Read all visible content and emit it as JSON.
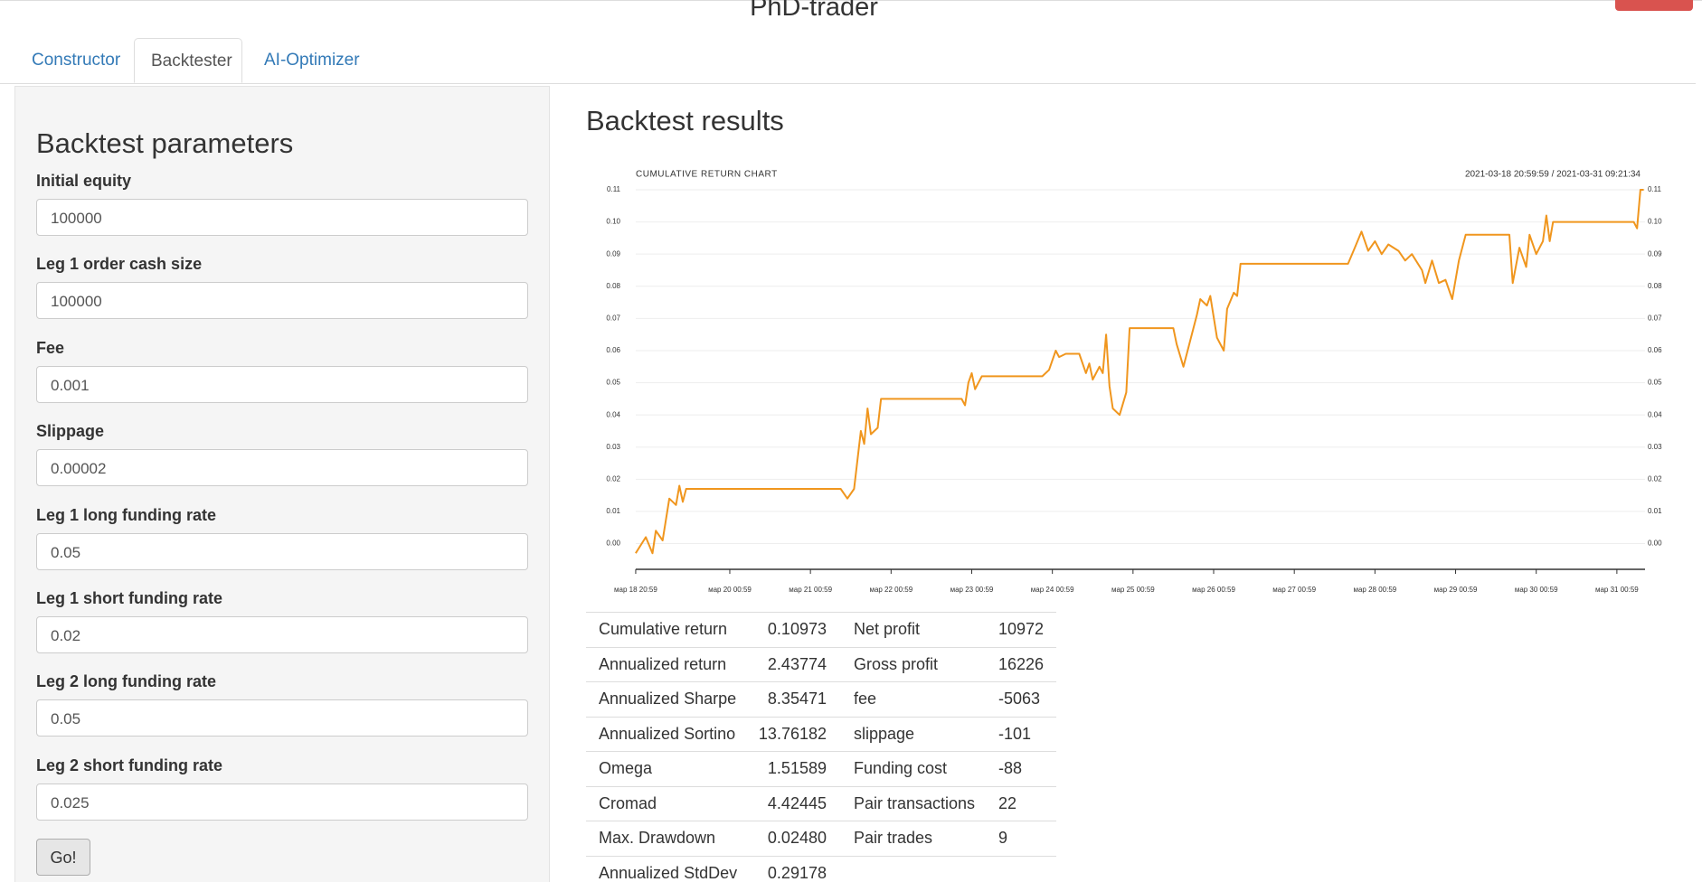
{
  "header": {
    "title": "PhD-trader"
  },
  "tabs": [
    "Constructor",
    "Backtester",
    "AI-Optimizer"
  ],
  "form": {
    "title": "Backtest parameters",
    "fields": [
      {
        "label": "Initial equity",
        "value": "100000"
      },
      {
        "label": "Leg 1 order cash size",
        "value": "100000"
      },
      {
        "label": "Fee",
        "value": "0.001"
      },
      {
        "label": "Slippage",
        "value": "0.00002"
      },
      {
        "label": "Leg 1 long funding rate",
        "value": "0.05"
      },
      {
        "label": "Leg 1 short funding rate",
        "value": "0.02"
      },
      {
        "label": "Leg 2 long funding rate",
        "value": "0.05"
      },
      {
        "label": "Leg 2 short funding rate",
        "value": "0.025"
      }
    ],
    "button": "Go!"
  },
  "results": {
    "title": "Backtest results",
    "rows": [
      [
        "Cumulative return",
        "0.10973",
        "Net profit",
        "10972"
      ],
      [
        "Annualized return",
        "2.43774",
        "Gross profit",
        "16226"
      ],
      [
        "Annualized Sharpe",
        "8.35471",
        "fee",
        "-5063"
      ],
      [
        "Annualized Sortino",
        "13.76182",
        "slippage",
        "-101"
      ],
      [
        "Omega",
        "1.51589",
        "Funding cost",
        "-88"
      ],
      [
        "Cromad",
        "4.42445",
        "Pair transactions",
        "22"
      ],
      [
        "Max. Drawdown",
        "0.02480",
        "Pair trades",
        "9"
      ],
      [
        "Annualized StdDev",
        "0.29178"
      ]
    ]
  },
  "chart_data": {
    "type": "line",
    "title": "CUMULATIVE RETURN CHART",
    "subtitle": "2021-03-18 20:59:59 / 2021-03-31 09:21:34",
    "color": "#f0961e",
    "grid": true,
    "xlim": [
      "2021-03-18 20:59:59",
      "2021-03-31 09:21:34"
    ],
    "ylim": [
      -0.008,
      0.11
    ],
    "xticks": [
      {
        "value": "2021-03-18 20:59",
        "label": "мар 18 20:59"
      },
      {
        "value": "2021-03-20 00:59",
        "label": "мар 20 00:59"
      },
      {
        "value": "2021-03-21 00:59",
        "label": "мар 21 00:59"
      },
      {
        "value": "2021-03-22 00:59",
        "label": "мар 22 00:59"
      },
      {
        "value": "2021-03-23 00:59",
        "label": "мар 23 00:59"
      },
      {
        "value": "2021-03-24 00:59",
        "label": "мар 24 00:59"
      },
      {
        "value": "2021-03-25 00:59",
        "label": "мар 25 00:59"
      },
      {
        "value": "2021-03-26 00:59",
        "label": "мар 26 00:59"
      },
      {
        "value": "2021-03-27 00:59",
        "label": "мар 27 00:59"
      },
      {
        "value": "2021-03-28 00:59",
        "label": "мар 28 00:59"
      },
      {
        "value": "2021-03-29 00:59",
        "label": "мар 29 00:59"
      },
      {
        "value": "2021-03-30 00:59",
        "label": "мар 30 00:59"
      },
      {
        "value": "2021-03-31 00:59",
        "label": "мар 31 00:59"
      }
    ],
    "yticks": [
      {
        "value": 0,
        "label": "0.00"
      },
      {
        "value": 0.01,
        "label": "0.01"
      },
      {
        "value": 0.02,
        "label": "0.02"
      },
      {
        "value": 0.03,
        "label": "0.03"
      },
      {
        "value": 0.04,
        "label": "0.04"
      },
      {
        "value": 0.05,
        "label": "0.05"
      },
      {
        "value": 0.06,
        "label": "0.06"
      },
      {
        "value": 0.07,
        "label": "0.07"
      },
      {
        "value": 0.08,
        "label": "0.08"
      },
      {
        "value": 0.09,
        "label": "0.09"
      },
      {
        "value": 0.1,
        "label": "0.10"
      },
      {
        "value": 0.11,
        "label": "0.11"
      }
    ],
    "x": [
      "2021-03-18 20:59",
      "2021-03-18 23:59",
      "2021-03-19 01:59",
      "2021-03-19 02:59",
      "2021-03-19 04:59",
      "2021-03-19 06:59",
      "2021-03-19 08:59",
      "2021-03-19 09:59",
      "2021-03-19 10:59",
      "2021-03-19 11:59",
      "2021-03-21 09:59",
      "2021-03-21 11:59",
      "2021-03-21 13:59",
      "2021-03-21 15:59",
      "2021-03-21 16:59",
      "2021-03-21 17:59",
      "2021-03-21 18:59",
      "2021-03-21 20:59",
      "2021-03-21 21:59",
      "2021-03-22 21:59",
      "2021-03-22 22:59",
      "2021-03-22 23:59",
      "2021-03-23 00:59",
      "2021-03-23 01:59",
      "2021-03-23 03:59",
      "2021-03-23 21:59",
      "2021-03-23 23:59",
      "2021-03-24 01:59",
      "2021-03-24 02:59",
      "2021-03-24 04:59",
      "2021-03-24 08:59",
      "2021-03-24 10:59",
      "2021-03-24 11:59",
      "2021-03-24 12:59",
      "2021-03-24 14:59",
      "2021-03-24 15:59",
      "2021-03-24 16:59",
      "2021-03-24 17:59",
      "2021-03-24 18:59",
      "2021-03-24 20:59",
      "2021-03-24 22:59",
      "2021-03-24 23:59",
      "2021-03-25 12:59",
      "2021-03-25 13:59",
      "2021-03-25 15:59",
      "2021-03-25 17:59",
      "2021-03-25 19:59",
      "2021-03-25 20:59",
      "2021-03-25 22:59",
      "2021-03-25 23:59",
      "2021-03-26 01:59",
      "2021-03-26 03:59",
      "2021-03-26 04:59",
      "2021-03-26 06:59",
      "2021-03-26 07:59",
      "2021-03-26 08:59",
      "2021-03-27 16:59",
      "2021-03-27 18:59",
      "2021-03-27 20:59",
      "2021-03-27 22:59",
      "2021-03-28 00:59",
      "2021-03-28 02:59",
      "2021-03-28 04:59",
      "2021-03-28 07:59",
      "2021-03-28 09:59",
      "2021-03-28 11:59",
      "2021-03-28 14:59",
      "2021-03-28 15:59",
      "2021-03-28 17:59",
      "2021-03-28 19:59",
      "2021-03-28 21:59",
      "2021-03-28 23:59",
      "2021-03-29 01:59",
      "2021-03-29 03:59",
      "2021-03-29 16:59",
      "2021-03-29 17:59",
      "2021-03-29 19:59",
      "2021-03-29 21:59",
      "2021-03-29 22:59",
      "2021-03-30 00:59",
      "2021-03-30 02:59",
      "2021-03-30 03:59",
      "2021-03-30 04:59",
      "2021-03-30 05:59",
      "2021-03-31 05:59",
      "2021-03-31 06:59",
      "2021-03-31 07:59",
      "2021-03-31 08:59"
    ],
    "values": [
      -0.003,
      0.002,
      -0.003,
      0.004,
      0.001,
      0.014,
      0.012,
      0.018,
      0.013,
      0.017,
      0.017,
      0.014,
      0.017,
      0.035,
      0.031,
      0.042,
      0.034,
      0.036,
      0.045,
      0.045,
      0.043,
      0.05,
      0.053,
      0.048,
      0.052,
      0.052,
      0.054,
      0.06,
      0.058,
      0.059,
      0.059,
      0.053,
      0.056,
      0.051,
      0.055,
      0.053,
      0.065,
      0.049,
      0.042,
      0.04,
      0.047,
      0.067,
      0.067,
      0.062,
      0.055,
      0.063,
      0.071,
      0.076,
      0.074,
      0.077,
      0.064,
      0.06,
      0.073,
      0.078,
      0.077,
      0.087,
      0.087,
      0.092,
      0.097,
      0.091,
      0.094,
      0.09,
      0.093,
      0.091,
      0.088,
      0.09,
      0.085,
      0.081,
      0.088,
      0.081,
      0.082,
      0.076,
      0.088,
      0.096,
      0.096,
      0.081,
      0.092,
      0.086,
      0.096,
      0.09,
      0.094,
      0.102,
      0.094,
      0.1,
      0.1,
      0.098,
      0.11,
      0.11
    ]
  }
}
